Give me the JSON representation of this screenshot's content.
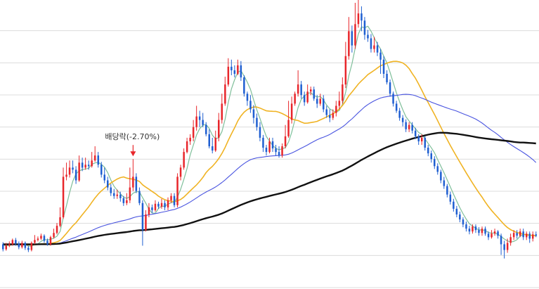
{
  "chart_data": {
    "type": "candlestick",
    "grid": "horizontal",
    "annotation": {
      "label": "배당락(-2.70%)",
      "bar_index": 41,
      "marker": "down-arrow",
      "color": "#e8262b"
    },
    "colors": {
      "up": "#e8262b",
      "down": "#1f5fd1",
      "ma_short": "#7fbf9a",
      "ma_mid": "#f0b323",
      "ma_long": "#4a55e0",
      "ma_xlong": "#111111",
      "grid": "#dcdcdc"
    },
    "seed_open": 60,
    "candles": [
      [
        60,
        53,
        63,
        50
      ],
      [
        53,
        58,
        62,
        51
      ],
      [
        58,
        60,
        64,
        56
      ],
      [
        60,
        66,
        68,
        58
      ],
      [
        66,
        61,
        69,
        58
      ],
      [
        61,
        56,
        64,
        53
      ],
      [
        56,
        62,
        65,
        54
      ],
      [
        62,
        55,
        64,
        52
      ],
      [
        55,
        52,
        58,
        49
      ],
      [
        52,
        62,
        64,
        50
      ],
      [
        62,
        66,
        73,
        60
      ],
      [
        66,
        68,
        71,
        64
      ],
      [
        68,
        72,
        75,
        66
      ],
      [
        72,
        65,
        74,
        62
      ],
      [
        65,
        60,
        68,
        58
      ],
      [
        60,
        70,
        72,
        58
      ],
      [
        70,
        76,
        82,
        68
      ],
      [
        76,
        86,
        90,
        74
      ],
      [
        86,
        98,
        112,
        84
      ],
      [
        98,
        155,
        168,
        96
      ],
      [
        155,
        158,
        175,
        150
      ],
      [
        158,
        168,
        178,
        154
      ],
      [
        168,
        165,
        178,
        160
      ],
      [
        165,
        150,
        170,
        145
      ],
      [
        150,
        175,
        185,
        148
      ],
      [
        175,
        168,
        182,
        163
      ],
      [
        168,
        172,
        182,
        165
      ],
      [
        172,
        170,
        178,
        165
      ],
      [
        170,
        178,
        190,
        168
      ],
      [
        178,
        185,
        198,
        176
      ],
      [
        185,
        172,
        190,
        168
      ],
      [
        172,
        158,
        176,
        154
      ],
      [
        158,
        150,
        168,
        146
      ],
      [
        150,
        140,
        155,
        136
      ],
      [
        140,
        132,
        145,
        128
      ],
      [
        132,
        128,
        138,
        124
      ],
      [
        128,
        130,
        137,
        124
      ],
      [
        130,
        125,
        134,
        120
      ],
      [
        125,
        118,
        128,
        114
      ],
      [
        118,
        122,
        132,
        115
      ],
      [
        122,
        140,
        168,
        118
      ],
      [
        140,
        155,
        180,
        135
      ],
      [
        155,
        135,
        160,
        132
      ],
      [
        135,
        118,
        140,
        115
      ],
      [
        118,
        80,
        122,
        58
      ],
      [
        80,
        102,
        108,
        78
      ],
      [
        102,
        112,
        118,
        98
      ],
      [
        112,
        108,
        116,
        104
      ],
      [
        108,
        117,
        122,
        106
      ],
      [
        117,
        113,
        120,
        110
      ],
      [
        113,
        118,
        124,
        110
      ],
      [
        118,
        112,
        122,
        108
      ],
      [
        112,
        122,
        126,
        108
      ],
      [
        122,
        128,
        132,
        118
      ],
      [
        128,
        115,
        132,
        112
      ],
      [
        115,
        155,
        160,
        112
      ],
      [
        155,
        168,
        172,
        150
      ],
      [
        168,
        190,
        195,
        165
      ],
      [
        190,
        205,
        210,
        188
      ],
      [
        205,
        210,
        215,
        200
      ],
      [
        210,
        225,
        235,
        205
      ],
      [
        225,
        240,
        255,
        220
      ],
      [
        240,
        235,
        248,
        225
      ],
      [
        235,
        228,
        245,
        225
      ],
      [
        228,
        215,
        232,
        212
      ],
      [
        215,
        198,
        222,
        195
      ],
      [
        198,
        192,
        210,
        188
      ],
      [
        192,
        210,
        220,
        190
      ],
      [
        210,
        235,
        245,
        205
      ],
      [
        235,
        258,
        272,
        230
      ],
      [
        258,
        285,
        296,
        255
      ],
      [
        285,
        310,
        322,
        282
      ],
      [
        310,
        305,
        320,
        298
      ],
      [
        305,
        300,
        312,
        295
      ],
      [
        300,
        312,
        320,
        298
      ],
      [
        312,
        295,
        318,
        290
      ],
      [
        295,
        272,
        298,
        268
      ],
      [
        272,
        262,
        275,
        255
      ],
      [
        262,
        250,
        270,
        245
      ],
      [
        250,
        238,
        256,
        230
      ],
      [
        238,
        225,
        244,
        220
      ],
      [
        225,
        210,
        232,
        205
      ],
      [
        210,
        196,
        214,
        190
      ],
      [
        196,
        190,
        200,
        185
      ],
      [
        190,
        205,
        210,
        188
      ],
      [
        205,
        195,
        210,
        190
      ],
      [
        195,
        190,
        200,
        185
      ],
      [
        190,
        185,
        198,
        182
      ],
      [
        185,
        198,
        202,
        182
      ],
      [
        198,
        212,
        228,
        195
      ],
      [
        212,
        235,
        262,
        210
      ],
      [
        235,
        258,
        268,
        230
      ],
      [
        258,
        272,
        275,
        255
      ],
      [
        272,
        285,
        305,
        268
      ],
      [
        285,
        270,
        290,
        265
      ],
      [
        270,
        260,
        275,
        255
      ],
      [
        260,
        275,
        285,
        258
      ],
      [
        275,
        278,
        282,
        270
      ],
      [
        278,
        265,
        282,
        262
      ],
      [
        265,
        258,
        270,
        252
      ],
      [
        258,
        265,
        272,
        255
      ],
      [
        265,
        250,
        270,
        246
      ],
      [
        250,
        242,
        255,
        238
      ],
      [
        242,
        238,
        250,
        232
      ],
      [
        238,
        245,
        250,
        235
      ],
      [
        245,
        255,
        262,
        240
      ],
      [
        255,
        262,
        275,
        250
      ],
      [
        262,
        285,
        295,
        258
      ],
      [
        285,
        325,
        345,
        280
      ],
      [
        325,
        360,
        380,
        320
      ],
      [
        360,
        340,
        368,
        330
      ],
      [
        340,
        370,
        400,
        335
      ],
      [
        370,
        385,
        405,
        365
      ],
      [
        385,
        375,
        395,
        360
      ],
      [
        375,
        355,
        380,
        348
      ],
      [
        355,
        350,
        362,
        345
      ],
      [
        350,
        335,
        356,
        330
      ],
      [
        335,
        340,
        352,
        330
      ],
      [
        340,
        330,
        345,
        325
      ],
      [
        330,
        320,
        335,
        300
      ],
      [
        320,
        300,
        325,
        294
      ],
      [
        300,
        288,
        305,
        285
      ],
      [
        288,
        272,
        292,
        268
      ],
      [
        272,
        258,
        275,
        254
      ],
      [
        258,
        248,
        262,
        245
      ],
      [
        248,
        238,
        252,
        234
      ],
      [
        238,
        232,
        242,
        226
      ],
      [
        232,
        222,
        236,
        218
      ],
      [
        222,
        228,
        232,
        218
      ],
      [
        228,
        220,
        232,
        216
      ],
      [
        220,
        212,
        224,
        208
      ],
      [
        212,
        205,
        215,
        200
      ],
      [
        205,
        210,
        215,
        200
      ],
      [
        210,
        196,
        212,
        192
      ],
      [
        196,
        188,
        200,
        184
      ],
      [
        188,
        180,
        192,
        175
      ],
      [
        180,
        170,
        184,
        166
      ],
      [
        170,
        162,
        174,
        158
      ],
      [
        162,
        150,
        165,
        146
      ],
      [
        150,
        142,
        155,
        138
      ],
      [
        142,
        130,
        145,
        126
      ],
      [
        130,
        120,
        134,
        116
      ],
      [
        120,
        110,
        124,
        106
      ],
      [
        110,
        102,
        114,
        98
      ],
      [
        102,
        95,
        106,
        91
      ],
      [
        95,
        88,
        98,
        84
      ],
      [
        88,
        82,
        92,
        78
      ],
      [
        82,
        78,
        86,
        74
      ],
      [
        78,
        85,
        88,
        75
      ],
      [
        85,
        80,
        88,
        76
      ],
      [
        80,
        76,
        84,
        72
      ],
      [
        76,
        82,
        85,
        72
      ],
      [
        82,
        75,
        85,
        72
      ],
      [
        75,
        70,
        78,
        66
      ],
      [
        70,
        75,
        80,
        68
      ],
      [
        75,
        78,
        82,
        72
      ],
      [
        78,
        72,
        80,
        68
      ],
      [
        72,
        60,
        75,
        45
      ],
      [
        60,
        52,
        65,
        40
      ],
      [
        52,
        62,
        68,
        48
      ],
      [
        62,
        70,
        75,
        58
      ],
      [
        70,
        76,
        80,
        66
      ],
      [
        76,
        72,
        80,
        68
      ],
      [
        72,
        78,
        82,
        70
      ],
      [
        78,
        70,
        82,
        66
      ],
      [
        70,
        75,
        78,
        66
      ],
      [
        75,
        68,
        78,
        62
      ],
      [
        68,
        74,
        78,
        64
      ],
      [
        74,
        72,
        78,
        70
      ]
    ],
    "ma_windows": [
      5,
      20,
      60,
      120
    ],
    "ylim": [
      0,
      400
    ]
  }
}
